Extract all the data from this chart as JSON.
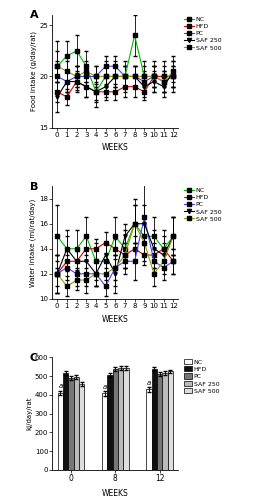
{
  "weeks": [
    0,
    1,
    2,
    3,
    4,
    5,
    6,
    7,
    8,
    9,
    10,
    11,
    12
  ],
  "food_NC": [
    21.0,
    22.0,
    22.5,
    21.0,
    18.5,
    20.0,
    20.0,
    20.0,
    24.0,
    20.0,
    20.0,
    20.0,
    20.0
  ],
  "food_HFD": [
    18.5,
    18.0,
    19.5,
    19.0,
    18.5,
    18.5,
    18.5,
    19.0,
    19.0,
    18.5,
    20.0,
    20.0,
    20.0
  ],
  "food_PC": [
    20.0,
    19.5,
    20.0,
    20.0,
    20.0,
    21.0,
    21.0,
    20.0,
    20.0,
    19.5,
    20.0,
    19.5,
    20.0
  ],
  "food_SAF250": [
    18.0,
    19.5,
    19.5,
    19.0,
    18.5,
    19.0,
    20.0,
    20.0,
    20.0,
    19.0,
    19.5,
    19.0,
    20.5
  ],
  "food_SAF500": [
    21.0,
    20.5,
    20.0,
    20.5,
    20.0,
    20.0,
    20.0,
    20.0,
    20.0,
    20.0,
    20.0,
    19.5,
    20.5
  ],
  "food_NC_err": [
    2.5,
    1.5,
    1.5,
    1.5,
    1.5,
    1.5,
    1.5,
    1.5,
    2.0,
    1.5,
    1.5,
    1.5,
    1.5
  ],
  "food_HFD_err": [
    1.0,
    0.8,
    0.8,
    1.0,
    0.8,
    0.8,
    0.8,
    1.0,
    1.0,
    0.8,
    1.0,
    1.0,
    1.0
  ],
  "food_PC_err": [
    1.5,
    1.0,
    1.0,
    1.0,
    1.0,
    1.0,
    1.0,
    1.0,
    1.0,
    1.0,
    1.0,
    1.0,
    1.0
  ],
  "food_SAF250_err": [
    1.5,
    1.0,
    1.0,
    1.0,
    1.0,
    1.0,
    1.0,
    1.0,
    1.0,
    1.0,
    1.0,
    1.0,
    1.5
  ],
  "food_SAF500_err": [
    1.5,
    1.0,
    1.0,
    1.0,
    1.0,
    1.0,
    1.0,
    1.0,
    1.0,
    1.0,
    1.0,
    1.0,
    1.0
  ],
  "water_NC": [
    15.0,
    14.0,
    14.0,
    15.0,
    13.0,
    13.0,
    15.0,
    14.0,
    16.0,
    15.0,
    15.0,
    14.0,
    15.0
  ],
  "water_HFD": [
    12.0,
    13.0,
    13.0,
    14.0,
    14.0,
    14.5,
    14.0,
    13.5,
    14.0,
    13.5,
    13.5,
    14.0,
    13.0
  ],
  "water_PC": [
    12.0,
    12.5,
    12.0,
    12.0,
    12.0,
    11.0,
    12.5,
    13.0,
    13.0,
    16.5,
    13.0,
    12.5,
    13.0
  ],
  "water_SAF250": [
    12.0,
    14.0,
    13.0,
    13.0,
    12.0,
    13.5,
    12.0,
    15.0,
    16.0,
    16.0,
    14.0,
    13.5,
    15.0
  ],
  "water_SAF500": [
    12.0,
    11.0,
    11.5,
    11.5,
    12.0,
    12.0,
    12.5,
    13.5,
    16.0,
    14.5,
    12.0,
    13.0,
    15.0
  ],
  "water_NC_err": [
    2.5,
    1.5,
    1.5,
    1.5,
    1.5,
    1.5,
    1.5,
    1.5,
    2.0,
    1.5,
    1.5,
    1.5,
    1.5
  ],
  "water_HFD_err": [
    1.0,
    0.8,
    0.8,
    1.0,
    0.8,
    0.8,
    0.8,
    1.0,
    1.0,
    0.8,
    1.0,
    1.0,
    1.0
  ],
  "water_PC_err": [
    1.5,
    1.0,
    1.0,
    1.0,
    1.0,
    0.8,
    1.5,
    1.0,
    1.5,
    3.0,
    1.0,
    1.0,
    1.0
  ],
  "water_SAF250_err": [
    1.5,
    1.0,
    1.0,
    1.0,
    1.0,
    1.0,
    1.5,
    1.0,
    1.5,
    1.5,
    1.5,
    1.0,
    1.5
  ],
  "water_SAF500_err": [
    1.5,
    0.8,
    0.8,
    1.0,
    1.0,
    1.0,
    1.0,
    1.0,
    1.5,
    1.5,
    1.0,
    1.0,
    1.5
  ],
  "energy_NC": [
    410,
    408,
    430
  ],
  "energy_HFD": [
    515,
    505,
    540
  ],
  "energy_PC": [
    490,
    540,
    510
  ],
  "energy_SAF250": [
    495,
    545,
    515
  ],
  "energy_SAF500": [
    460,
    545,
    525
  ],
  "energy_NC_err": [
    12,
    12,
    12
  ],
  "energy_HFD_err": [
    10,
    10,
    10
  ],
  "energy_PC_err": [
    10,
    10,
    10
  ],
  "energy_SAF250_err": [
    10,
    10,
    10
  ],
  "energy_SAF500_err": [
    10,
    10,
    10
  ],
  "line_colors": {
    "NC": "#00bb00",
    "HFD": "#dd0000",
    "PC": "#4444ff",
    "SAF250": "#000000",
    "SAF500": "#999900"
  },
  "bar_facecolors": {
    "NC": "#ffffff",
    "HFD": "#111111",
    "PC": "#777777",
    "SAF250": "#bbbbbb",
    "SAF500": "#dddddd"
  },
  "food_ylim": [
    15,
    26
  ],
  "food_yticks": [
    15,
    20,
    25
  ],
  "food_ylabel": "Food intake (g/day/rat)",
  "water_ylim": [
    10,
    19
  ],
  "water_yticks": [
    10,
    12,
    14,
    16,
    18
  ],
  "water_ylabel": "Water intake (ml/rat/day)",
  "energy_ylim": [
    0,
    600
  ],
  "energy_yticks": [
    0,
    100,
    200,
    300,
    400,
    500,
    600
  ],
  "energy_ylabel": "kj/day/rat",
  "panel_labels": [
    "A",
    "B",
    "C"
  ],
  "xlabel": "WEEKS",
  "energy_xtick_labels": [
    "0",
    "8",
    "12"
  ]
}
